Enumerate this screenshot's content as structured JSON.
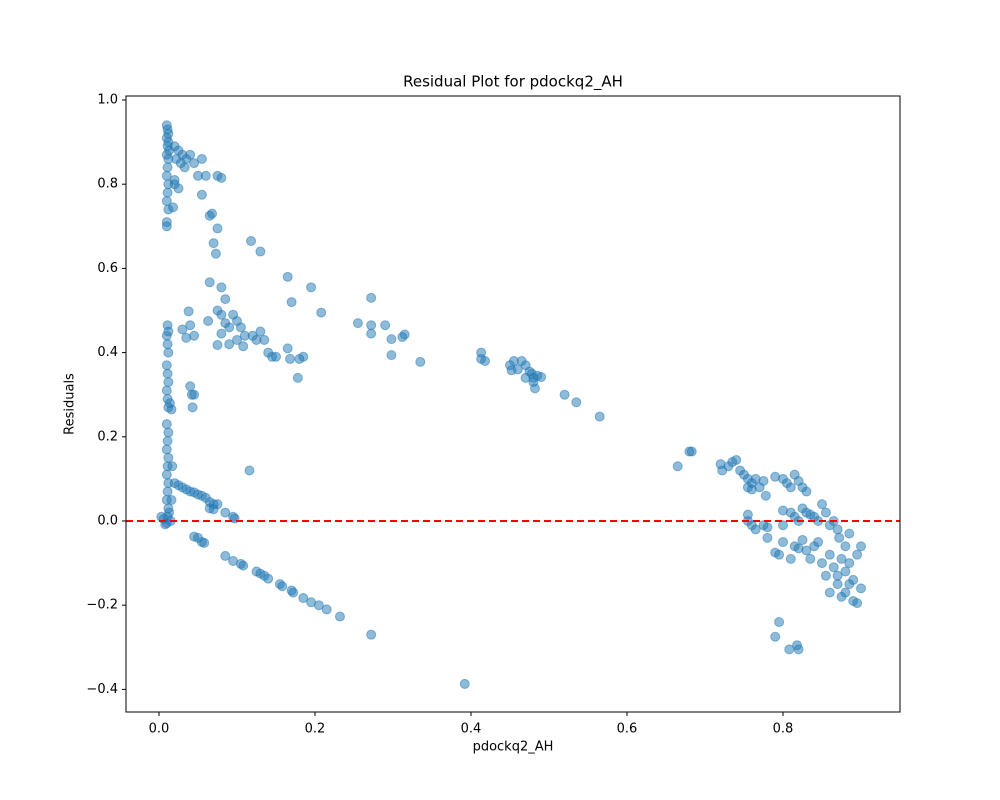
{
  "chart_data": {
    "type": "scatter",
    "title": "Residual Plot for pdockq2_AH",
    "xlabel": "pdockq2_AH",
    "ylabel": "Residuals",
    "color": "#1f77b4",
    "alpha": 0.5,
    "hline": {
      "y": 0,
      "color": "#ff0000",
      "style": "dashed"
    },
    "xlim": [
      -0.0423,
      0.95
    ],
    "ylim": [
      -0.4537,
      1.0095
    ],
    "xticks": [
      {
        "value": 0,
        "label": "0.0"
      },
      0.2,
      0.4,
      0.6,
      0.8
    ],
    "yticks": [
      {
        "value": -0.4,
        "label": "−0.4"
      },
      {
        "value": -0.2,
        "label": "−0.2"
      },
      {
        "value": 0,
        "label": "0.0"
      },
      {
        "value": 0.2,
        "label": "0.2"
      },
      {
        "value": 0.4,
        "label": "0.4"
      },
      {
        "value": 0.6,
        "label": "0.6"
      },
      {
        "value": 0.8,
        "label": "0.8"
      },
      {
        "value": 1,
        "label": "1.0"
      }
    ],
    "x": [
      0.01,
      0.011,
      0.012,
      0.01,
      0.012,
      0.011,
      0.013,
      0.01,
      0.012,
      0.011,
      0.01,
      0.012,
      0.011,
      0.01,
      0.012,
      0.01,
      0.01,
      0.02,
      0.025,
      0.03,
      0.035,
      0.04,
      0.022,
      0.028,
      0.033,
      0.045,
      0.055,
      0.05,
      0.06,
      0.075,
      0.08,
      0.02,
      0.025,
      0.02,
      0.018,
      0.055,
      0.065,
      0.068,
      0.075,
      0.07,
      0.073,
      0.118,
      0.13,
      0.165,
      0.195,
      0.17,
      0.208,
      0.272,
      0.255,
      0.272,
      0.29,
      0.272,
      0.298,
      0.315,
      0.312,
      0.298,
      0.335,
      0.065,
      0.08,
      0.085,
      0.063,
      0.075,
      0.08,
      0.085,
      0.09,
      0.095,
      0.1,
      0.105,
      0.11,
      0.08,
      0.09,
      0.1,
      0.108,
      0.12,
      0.125,
      0.13,
      0.135,
      0.14,
      0.145,
      0.15,
      0.165,
      0.168,
      0.18,
      0.185,
      0.178,
      0.038,
      0.04,
      0.03,
      0.035,
      0.045,
      0.04,
      0.042,
      0.045,
      0.043,
      0.075,
      0.011,
      0.012,
      0.01,
      0.011,
      0.012,
      0.01,
      0.011,
      0.012,
      0.01,
      0.011,
      0.012,
      0.016,
      0.014,
      0.01,
      0.012,
      0.011,
      0.01,
      0.012,
      0.011,
      0.017,
      0.01,
      0.012,
      0.011,
      0.01,
      0.012,
      0.011,
      0.01,
      0.003,
      0.006,
      0.008,
      0.015,
      0.013,
      0.016,
      0.116,
      0.02,
      0.025,
      0.03,
      0.035,
      0.04,
      0.045,
      0.05,
      0.055,
      0.06,
      0.065,
      0.07,
      0.075,
      0.065,
      0.07,
      0.085,
      0.095,
      0.097,
      0.045,
      0.05,
      0.055,
      0.058,
      0.085,
      0.095,
      0.105,
      0.108,
      0.125,
      0.13,
      0.135,
      0.14,
      0.155,
      0.158,
      0.17,
      0.172,
      0.185,
      0.195,
      0.205,
      0.215,
      0.232,
      0.272,
      0.392,
      0.413,
      0.413,
      0.418,
      0.45,
      0.455,
      0.46,
      0.465,
      0.47,
      0.475,
      0.478,
      0.48,
      0.485,
      0.47,
      0.48,
      0.482,
      0.49,
      0.452,
      0.52,
      0.535,
      0.565,
      0.665,
      0.68,
      0.683,
      0.72,
      0.722,
      0.73,
      0.735,
      0.74,
      0.745,
      0.75,
      0.755,
      0.76,
      0.765,
      0.77,
      0.775,
      0.778,
      0.755,
      0.76,
      0.79,
      0.8,
      0.805,
      0.81,
      0.815,
      0.82,
      0.825,
      0.83,
      0.8,
      0.81,
      0.815,
      0.82,
      0.825,
      0.83,
      0.835,
      0.84,
      0.845,
      0.85,
      0.855,
      0.86,
      0.865,
      0.87,
      0.872,
      0.755,
      0.755,
      0.76,
      0.765,
      0.775,
      0.78,
      0.78,
      0.79,
      0.795,
      0.8,
      0.81,
      0.8,
      0.815,
      0.82,
      0.825,
      0.83,
      0.835,
      0.84,
      0.845,
      0.85,
      0.855,
      0.86,
      0.865,
      0.87,
      0.875,
      0.88,
      0.885,
      0.89,
      0.895,
      0.9,
      0.88,
      0.885,
      0.89,
      0.895,
      0.9,
      0.875,
      0.88,
      0.885,
      0.87,
      0.86,
      0.795,
      0.79,
      0.808,
      0.82,
      0.818
    ],
    "values": [
      0.94,
      0.93,
      0.92,
      0.91,
      0.9,
      0.89,
      0.88,
      0.87,
      0.86,
      0.84,
      0.82,
      0.8,
      0.78,
      0.76,
      0.74,
      0.71,
      0.7,
      0.89,
      0.88,
      0.87,
      0.86,
      0.87,
      0.86,
      0.85,
      0.84,
      0.85,
      0.86,
      0.82,
      0.82,
      0.82,
      0.815,
      0.81,
      0.79,
      0.8,
      0.745,
      0.775,
      0.725,
      0.73,
      0.695,
      0.66,
      0.635,
      0.665,
      0.64,
      0.58,
      0.555,
      0.52,
      0.495,
      0.53,
      0.47,
      0.465,
      0.465,
      0.445,
      0.432,
      0.443,
      0.437,
      0.394,
      0.378,
      0.567,
      0.555,
      0.527,
      0.475,
      0.5,
      0.49,
      0.47,
      0.46,
      0.49,
      0.475,
      0.46,
      0.44,
      0.445,
      0.42,
      0.43,
      0.415,
      0.44,
      0.43,
      0.45,
      0.43,
      0.4,
      0.39,
      0.39,
      0.41,
      0.385,
      0.385,
      0.39,
      0.34,
      0.498,
      0.465,
      0.455,
      0.435,
      0.44,
      0.32,
      0.3,
      0.3,
      0.27,
      0.418,
      0.465,
      0.45,
      0.44,
      0.42,
      0.4,
      0.37,
      0.35,
      0.33,
      0.31,
      0.29,
      0.27,
      0.265,
      0.28,
      0.23,
      0.21,
      0.19,
      0.17,
      0.15,
      0.13,
      0.13,
      0.11,
      0.09,
      0.07,
      0.05,
      0.03,
      0.01,
      -0.005,
      0.01,
      0.005,
      -0.008,
      0.0,
      0.02,
      0.05,
      0.12,
      0.09,
      0.085,
      0.08,
      0.075,
      0.07,
      0.068,
      0.063,
      0.06,
      0.055,
      0.045,
      0.04,
      0.04,
      0.03,
      0.028,
      0.02,
      0.01,
      0.006,
      -0.037,
      -0.04,
      -0.05,
      -0.052,
      -0.083,
      -0.095,
      -0.102,
      -0.106,
      -0.12,
      -0.125,
      -0.13,
      -0.137,
      -0.15,
      -0.155,
      -0.165,
      -0.17,
      -0.183,
      -0.193,
      -0.2,
      -0.21,
      -0.227,
      -0.27,
      -0.387,
      0.4,
      0.385,
      0.38,
      0.37,
      0.38,
      0.36,
      0.38,
      0.37,
      0.355,
      0.35,
      0.34,
      0.345,
      0.34,
      0.33,
      0.315,
      0.342,
      0.358,
      0.3,
      0.282,
      0.248,
      0.13,
      0.165,
      0.165,
      0.135,
      0.12,
      0.13,
      0.14,
      0.145,
      0.12,
      0.11,
      0.1,
      0.09,
      0.1,
      0.08,
      0.095,
      0.06,
      0.08,
      0.075,
      0.105,
      0.1,
      0.09,
      0.08,
      0.11,
      0.095,
      0.08,
      0.07,
      0.025,
      0.02,
      0.01,
      0.0,
      0.03,
      0.02,
      0.015,
      0.01,
      0.0,
      0.04,
      0.02,
      -0.01,
      0.0,
      -0.02,
      -0.04,
      0.015,
      0.0,
      -0.01,
      -0.02,
      -0.01,
      -0.015,
      -0.04,
      -0.075,
      -0.08,
      -0.01,
      -0.09,
      -0.05,
      -0.06,
      -0.065,
      -0.045,
      -0.07,
      -0.09,
      -0.06,
      -0.05,
      -0.1,
      -0.13,
      -0.08,
      -0.11,
      -0.15,
      -0.18,
      -0.12,
      -0.1,
      -0.14,
      -0.08,
      -0.06,
      -0.06,
      -0.03,
      -0.19,
      -0.195,
      -0.16,
      -0.09,
      -0.17,
      -0.15,
      -0.13,
      -0.17,
      -0.24,
      -0.275,
      -0.305,
      -0.305,
      -0.295
    ]
  }
}
